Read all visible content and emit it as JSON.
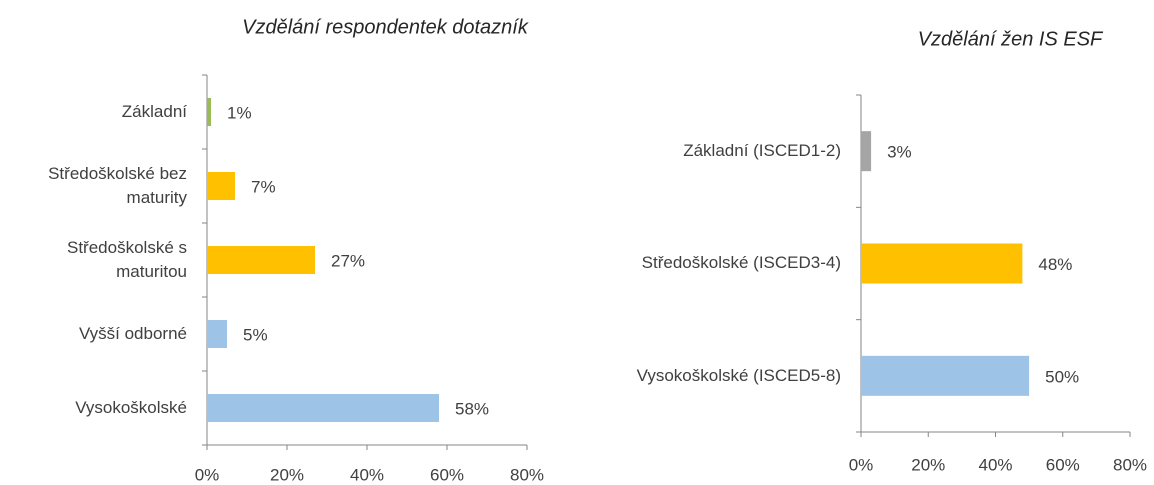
{
  "chart_data": [
    {
      "type": "bar",
      "orientation": "horizontal",
      "title": "Vzdělání respondentek dotazník",
      "categories": [
        "Základní",
        "Středoškolské bez maturity",
        "Středoškolské s maturitou",
        "Vyšší odborné",
        "Vysokoškolské"
      ],
      "values": [
        1,
        7,
        27,
        5,
        58
      ],
      "value_labels": [
        "1%",
        "7%",
        "27%",
        "5%",
        "58%"
      ],
      "colors": [
        "#9bbb59",
        "#ffc000",
        "#ffc000",
        "#9dc3e6",
        "#9dc3e6"
      ],
      "xlim": [
        0,
        80
      ],
      "xticks": [
        {
          "value": 0,
          "label": "0%"
        },
        {
          "value": 20,
          "label": "20%"
        },
        {
          "value": 40,
          "label": "40%"
        },
        {
          "value": 60,
          "label": "60%"
        },
        {
          "value": 80,
          "label": "80%"
        }
      ]
    },
    {
      "type": "bar",
      "orientation": "horizontal",
      "title": "Vzdělání žen IS ESF",
      "categories": [
        "Základní (ISCED1-2)",
        "Středoškolské (ISCED3-4)",
        "Vysokoškolské (ISCED5-8)"
      ],
      "values": [
        3,
        48,
        50
      ],
      "value_labels": [
        "3%",
        "48%",
        "50%"
      ],
      "colors": [
        "#a5a5a5",
        "#ffc000",
        "#9dc3e6"
      ],
      "xlim": [
        0,
        80
      ],
      "xticks": [
        {
          "value": 0,
          "label": "0%"
        },
        {
          "value": 20,
          "label": "20%"
        },
        {
          "value": 40,
          "label": "40%"
        },
        {
          "value": 60,
          "label": "60%"
        },
        {
          "value": 80,
          "label": "80%"
        }
      ]
    }
  ]
}
